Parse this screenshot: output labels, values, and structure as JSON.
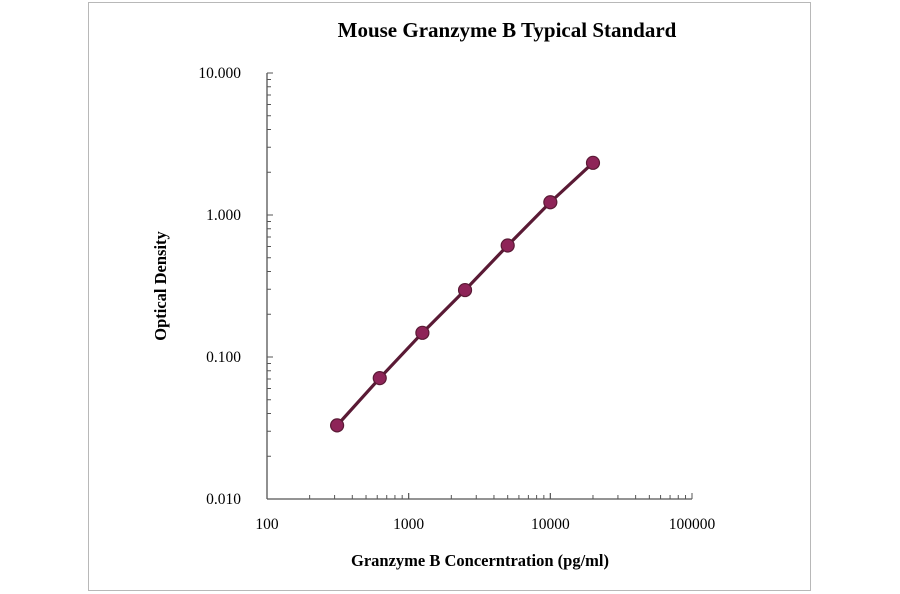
{
  "chart_data": {
    "type": "line",
    "title": "Mouse Granzyme B Typical Standard",
    "xlabel": "Granzyme B Concerntration (pg/ml)",
    "ylabel": "Optical Density",
    "xscale": "log",
    "yscale": "log",
    "xlim": [
      100,
      100000
    ],
    "ylim": [
      0.01,
      10
    ],
    "xticks": [
      "100",
      "1000",
      "10000",
      "100000"
    ],
    "yticks": [
      "0.010",
      "0.100",
      "1.000",
      "10.000"
    ],
    "grid": false,
    "legend": "none",
    "series": [
      {
        "x": [
          312.5,
          625,
          1250,
          2500,
          5000,
          10000,
          20000
        ],
        "y": [
          0.033,
          0.071,
          0.148,
          0.296,
          0.61,
          1.23,
          2.33
        ],
        "marker_color": "#8e2458",
        "line_color": "#5a1a35"
      }
    ]
  }
}
